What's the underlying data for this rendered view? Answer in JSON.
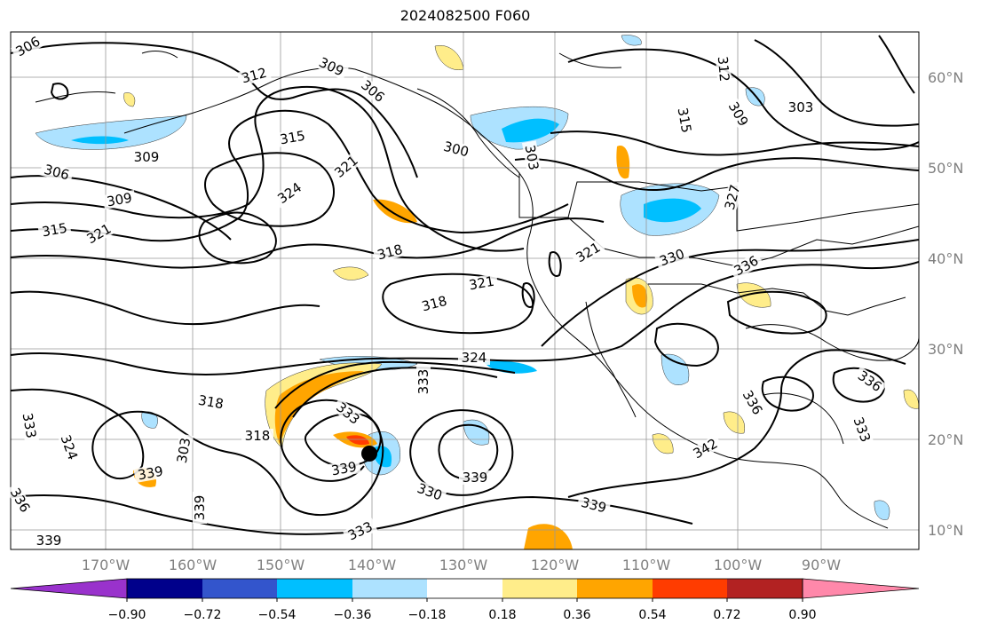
{
  "map": {
    "title": "2024082500 F060",
    "lat_labels": [
      "60°N",
      "50°N",
      "40°N",
      "30°N",
      "20°N",
      "10°N"
    ],
    "lon_labels": [
      "170°W",
      "160°W",
      "150°W",
      "140°W",
      "130°W",
      "120°W",
      "110°W",
      "100°W",
      "90°W"
    ],
    "contour_labels": [
      "306",
      "312",
      "309",
      "306",
      "315",
      "321",
      "324",
      "309",
      "306",
      "309",
      "315",
      "321",
      "300",
      "303",
      "312",
      "315",
      "309",
      "303",
      "327",
      "318",
      "321",
      "318",
      "321",
      "330",
      "336",
      "324",
      "333",
      "318",
      "333",
      "318",
      "339",
      "324",
      "333",
      "330",
      "339",
      "333",
      "339",
      "342",
      "336",
      "336",
      "333",
      "339",
      "336",
      "339",
      "339",
      "303"
    ]
  },
  "colorbar": {
    "tick_labels": [
      "−0.90",
      "−0.72",
      "−0.54",
      "−0.36",
      "−0.18",
      "0.18",
      "0.36",
      "0.54",
      "0.72",
      "0.90"
    ],
    "colors": [
      "#9932cc",
      "#00008b",
      "#3355cc",
      "#00bfff",
      "#ade2ff",
      "#ffffff",
      "#ffed8a",
      "#ffa500",
      "#ff3c00",
      "#b22222",
      "#ff88aa"
    ]
  },
  "storm_marker_color": "#000000"
}
